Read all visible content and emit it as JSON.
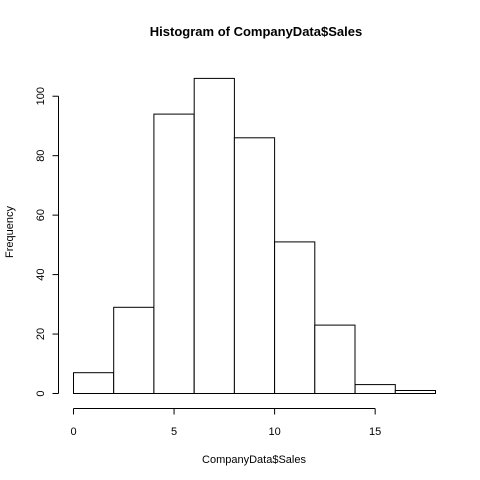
{
  "chart_data": {
    "type": "bar",
    "title": "Histogram of CompanyData$Sales",
    "xlabel": "CompanyData$Sales",
    "ylabel": "Frequency",
    "bins": [
      {
        "start": 0,
        "end": 2,
        "count": 7
      },
      {
        "start": 2,
        "end": 4,
        "count": 29
      },
      {
        "start": 4,
        "end": 6,
        "count": 94
      },
      {
        "start": 6,
        "end": 8,
        "count": 106
      },
      {
        "start": 8,
        "end": 10,
        "count": 86
      },
      {
        "start": 10,
        "end": 12,
        "count": 51
      },
      {
        "start": 12,
        "end": 14,
        "count": 23
      },
      {
        "start": 14,
        "end": 16,
        "count": 3
      },
      {
        "start": 16,
        "end": 18,
        "count": 1
      }
    ],
    "xlim": [
      0,
      18
    ],
    "ylim": [
      0,
      110
    ],
    "x_ticks": [
      0,
      5,
      10,
      15
    ],
    "y_ticks": [
      0,
      20,
      40,
      60,
      80,
      100
    ],
    "x_tick_labels": [
      "0",
      "5",
      "10",
      "15"
    ],
    "y_tick_labels": [
      "0",
      "20",
      "40",
      "60",
      "80",
      "100"
    ],
    "grid": false,
    "legend": "none"
  }
}
